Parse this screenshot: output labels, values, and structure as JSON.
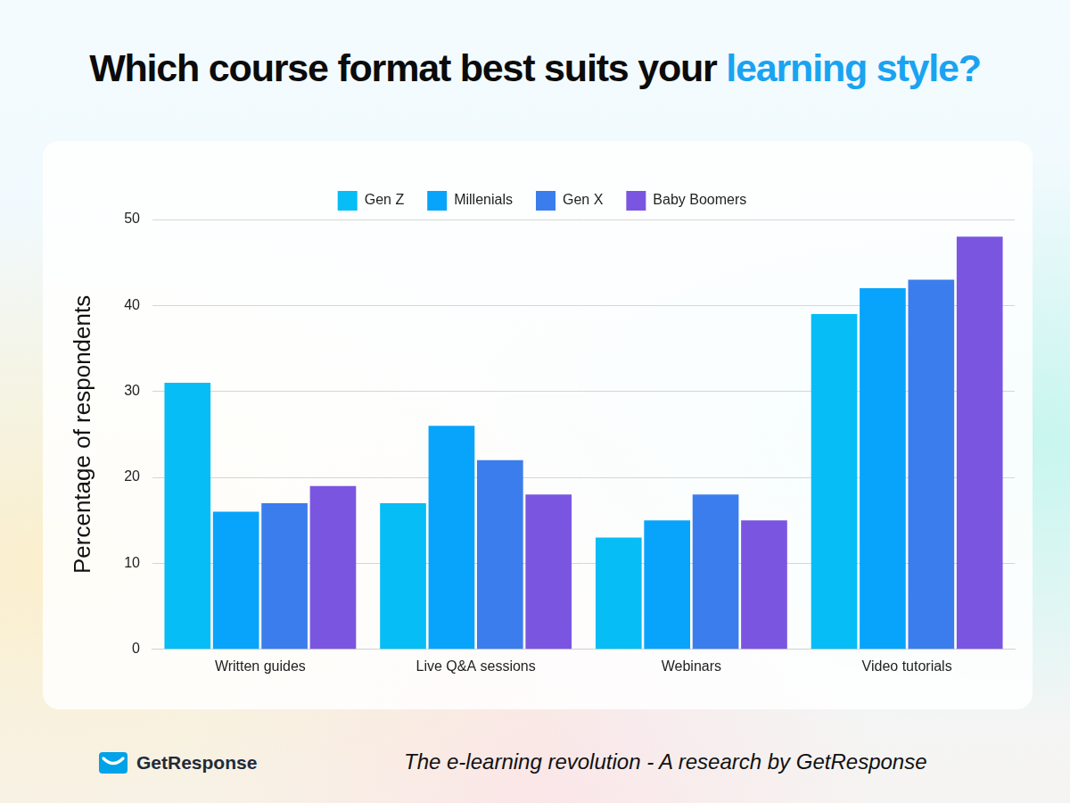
{
  "chart_data": {
    "type": "bar",
    "title": "Which course format best suits your learning style?",
    "title_highlight": "learning style?",
    "y_label": "Percentage of respondents",
    "categories": [
      "Written guides",
      "Live Q&A sessions",
      "Webinars",
      "Video tutorials"
    ],
    "series": [
      {
        "name": "Gen Z",
        "color": "#06bdf6",
        "values": [
          31,
          17,
          13,
          39
        ]
      },
      {
        "name": "Millenials",
        "color": "#08a4fb",
        "values": [
          16,
          26,
          15,
          42
        ]
      },
      {
        "name": "Gen X",
        "color": "#3b7ded",
        "values": [
          17,
          22,
          18,
          43
        ]
      },
      {
        "name": "Baby Boomers",
        "color": "#7a56e0",
        "values": [
          19,
          18,
          15,
          48
        ]
      }
    ],
    "ylim": [
      0,
      50
    ],
    "yticks": [
      0,
      10,
      20,
      30,
      40,
      50
    ],
    "grid": true,
    "legend": "top"
  },
  "footer": {
    "logo": "GetResponse",
    "caption": "The e-learning revolution - A research by GetResponse"
  }
}
